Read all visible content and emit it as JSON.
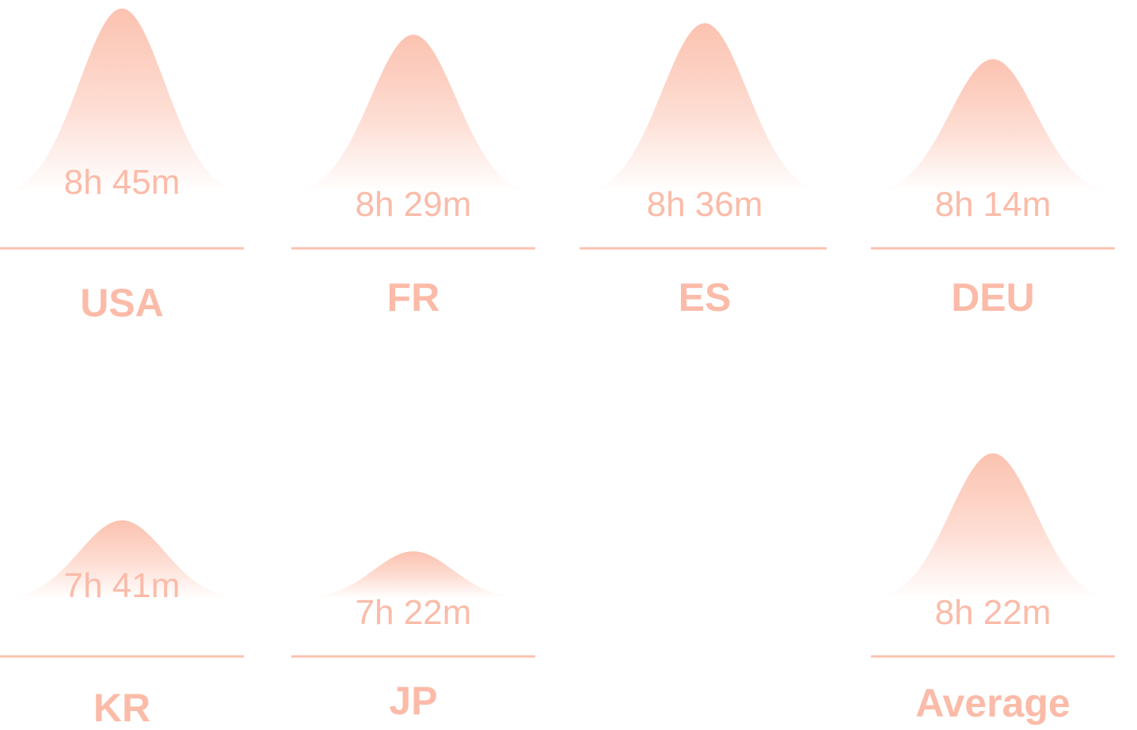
{
  "colors": {
    "accent": "#fcc2b0",
    "accent_text": "#fbbba8",
    "background": "#ffffff"
  },
  "chart_data": {
    "type": "area",
    "title": "",
    "value_unit": "hours",
    "grid": false,
    "legend": "none",
    "categories": [
      "USA",
      "FR",
      "ES",
      "DEU",
      "KR",
      "JP",
      "Average"
    ],
    "values": [
      8.75,
      8.483,
      8.6,
      8.233,
      7.683,
      7.367,
      8.367
    ],
    "labels": [
      "8h 45m",
      "8h 29m",
      "8h 36m",
      "8h 14m",
      "7h 41m",
      "7h 22m",
      "8h 22m"
    ]
  }
}
